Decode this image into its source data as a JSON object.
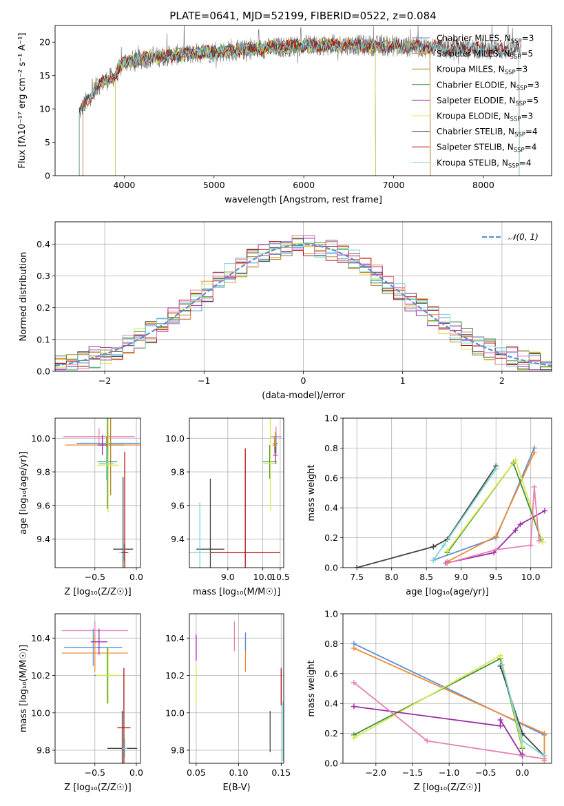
{
  "colors": {
    "chabrier_miles": "#5b8fd6",
    "salpeter_miles": "#f28b30",
    "kroupa_miles": "#b5872a",
    "chabrier_elodie": "#3a8f3a",
    "salpeter_elodie": "#9b2aa6",
    "kroupa_elodie": "#d9e84a",
    "chabrier_stelib": "#444444",
    "salpeter_stelib": "#b01010",
    "kroupa_stelib": "#7ad6d6",
    "spectrum_data": "#777777",
    "pink": "#e67fb3",
    "normal": "#5b8fd6"
  },
  "chart_data": [
    {
      "id": "spectrum",
      "type": "line",
      "title": "PLATE=0641, MJD=52199, FIBERID=0522, z=0.084",
      "xlabel": "wavelength [Angstrom, rest frame]",
      "ylabel": "Flux [fλ10⁻¹⁷ erg cm⁻² s⁻¹ A⁻¹]",
      "xlim": [
        3230,
        8760
      ],
      "ylim": [
        0,
        22.5
      ],
      "xticks": [
        4000,
        5000,
        6000,
        7000,
        8000
      ],
      "yticks": [
        0,
        5,
        10,
        15,
        20
      ],
      "grid": false,
      "legend_position": "top-right",
      "continuum": [
        [
          3500,
          9.5
        ],
        [
          3700,
          13.5
        ],
        [
          3900,
          15
        ],
        [
          4000,
          17
        ],
        [
          4200,
          17.5
        ],
        [
          4500,
          18
        ],
        [
          5000,
          18.5
        ],
        [
          5500,
          19
        ],
        [
          6000,
          19.5
        ],
        [
          6500,
          19.6
        ],
        [
          7000,
          19.4
        ],
        [
          7500,
          19.2
        ],
        [
          8000,
          19
        ],
        [
          8400,
          18.8
        ]
      ],
      "legend": [
        {
          "label": "Chabrier MILES, N",
          "sub": "SSP",
          "suffix": "=3",
          "color_key": "chabrier_miles"
        },
        {
          "label": "Salpeter MILES, N",
          "sub": "SSP",
          "suffix": "=5",
          "color_key": "salpeter_miles"
        },
        {
          "label": "Kroupa MILES, N",
          "sub": "SSP",
          "suffix": "=3",
          "color_key": "kroupa_miles"
        },
        {
          "label": "Chabrier ELODIE, N",
          "sub": "SSP",
          "suffix": "=3",
          "color_key": "chabrier_elodie"
        },
        {
          "label": "Salpeter ELODIE, N",
          "sub": "SSP",
          "suffix": "=5",
          "color_key": "salpeter_elodie"
        },
        {
          "label": "Kroupa ELODIE, N",
          "sub": "SSP",
          "suffix": "=3",
          "color_key": "kroupa_elodie"
        },
        {
          "label": "Chabrier STELIB, N",
          "sub": "SSP",
          "suffix": "=4",
          "color_key": "chabrier_stelib"
        },
        {
          "label": "Salpeter STELIB, N",
          "sub": "SSP",
          "suffix": "=4",
          "color_key": "salpeter_stelib"
        },
        {
          "label": "Kroupa STELIB, N",
          "sub": "SSP",
          "suffix": "=4",
          "color_key": "kroupa_stelib"
        }
      ]
    },
    {
      "id": "residuals",
      "type": "line",
      "xlabel": "(data-model)/error",
      "ylabel": "Normed distribution",
      "xlim": [
        -2.5,
        2.5
      ],
      "ylim": [
        0,
        0.47
      ],
      "xticks": [
        -2,
        -1,
        0,
        1,
        2
      ],
      "yticks": [
        0.0,
        0.1,
        0.2,
        0.3,
        0.4
      ],
      "grid": true,
      "legend_position": "top-right",
      "legend": [
        {
          "label": "𝒩(0, 1)",
          "color_key": "normal"
        }
      ],
      "hist_bins": 44,
      "series_colors": [
        "chabrier_miles",
        "salpeter_miles",
        "kroupa_miles",
        "chabrier_elodie",
        "salpeter_elodie",
        "kroupa_elodie",
        "chabrier_stelib",
        "salpeter_stelib",
        "kroupa_stelib",
        "pink"
      ]
    },
    {
      "id": "age_vs_Z",
      "type": "scatter",
      "xlabel": "Z [log₁₀(Z/Z☉)]",
      "ylabel": "age  [log₁₀(age/yr)]",
      "xlim": [
        -0.98,
        0.05
      ],
      "ylim": [
        9.23,
        10.12
      ],
      "xticks": [
        -0.5,
        0.0
      ],
      "yticks": [
        9.4,
        9.6,
        9.8,
        10.0
      ],
      "grid": true,
      "points": [
        {
          "x": -0.45,
          "y": 10.01,
          "xerr": 0.43,
          "yerr": 0.05,
          "color_key": "pink"
        },
        {
          "x": -0.34,
          "y": 9.97,
          "xerr": 0.38,
          "yerr": 0.06,
          "color_key": "chabrier_miles"
        },
        {
          "x": -0.36,
          "y": 9.96,
          "xerr": 0.5,
          "yerr": 0.05,
          "color_key": "salpeter_miles"
        },
        {
          "x": -0.31,
          "y": 9.96,
          "xerr": 0.16,
          "yerr": 0.3,
          "color_key": "kroupa_miles"
        },
        {
          "x": -0.35,
          "y": 9.86,
          "xerr": 0.12,
          "yerr": 0.28,
          "color_key": "chabrier_elodie"
        },
        {
          "x": -0.36,
          "y": 9.85,
          "xerr": 0.09,
          "yerr": 0.1,
          "color_key": "kroupa_stelib"
        },
        {
          "x": -0.34,
          "y": 9.84,
          "xerr": 0.13,
          "yerr": 0.28,
          "color_key": "kroupa_elodie"
        },
        {
          "x": -0.41,
          "y": 9.96,
          "xerr": 0.05,
          "yerr": 0.06,
          "color_key": "salpeter_elodie"
        },
        {
          "x": -0.16,
          "y": 9.34,
          "xerr": 0.12,
          "yerr": 0.43,
          "color_key": "chabrier_stelib"
        },
        {
          "x": -0.15,
          "y": 9.32,
          "xerr": 0.06,
          "yerr": 0.05,
          "color_key": "kroupa_stelib"
        },
        {
          "x": -0.14,
          "y": 9.32,
          "xerr": 0.04,
          "yerr": 0.6,
          "color_key": "salpeter_stelib"
        }
      ]
    },
    {
      "id": "age_vs_mass",
      "type": "scatter",
      "xlabel": "mass [log₁₀(M/M☉)]",
      "ylabel": "",
      "xlim": [
        7.9,
        10.6
      ],
      "ylim": [
        9.23,
        10.12
      ],
      "xticks": [
        10.0,
        10.5
      ],
      "xticklabels": [
        "10.0",
        "10.5"
      ],
      "extra_xticks": [
        {
          "v": 9.0,
          "label": ""
        }
      ],
      "yticks": [
        9.4,
        9.6,
        9.8,
        10.0
      ],
      "grid": true,
      "points": [
        {
          "x": 10.38,
          "y": 10.01,
          "xerr": 0.15,
          "yerr": 0.06,
          "color_key": "pink"
        },
        {
          "x": 10.38,
          "y": 9.97,
          "xerr": 0.06,
          "yerr": 0.06,
          "color_key": "chabrier_miles"
        },
        {
          "x": 10.36,
          "y": 9.97,
          "xerr": 0.07,
          "yerr": 0.07,
          "color_key": "salpeter_miles"
        },
        {
          "x": 10.34,
          "y": 9.96,
          "xerr": 0.06,
          "yerr": 0.05,
          "color_key": "kroupa_miles"
        },
        {
          "x": 10.2,
          "y": 9.86,
          "xerr": 0.2,
          "yerr": 0.1,
          "color_key": "chabrier_elodie"
        },
        {
          "x": 10.22,
          "y": 9.85,
          "xerr": 0.2,
          "yerr": 0.28,
          "color_key": "kroupa_elodie"
        },
        {
          "x": 10.36,
          "y": 9.9,
          "xerr": 0.07,
          "yerr": 0.05,
          "color_key": "salpeter_elodie"
        },
        {
          "x": 8.5,
          "y": 9.34,
          "xerr": 0.4,
          "yerr": 0.42,
          "color_key": "chabrier_stelib"
        },
        {
          "x": 8.2,
          "y": 9.32,
          "xerr": 0.4,
          "yerr": 0.3,
          "color_key": "kroupa_stelib"
        },
        {
          "x": 9.5,
          "y": 9.32,
          "xerr": 1.0,
          "yerr": 0.62,
          "color_key": "salpeter_stelib"
        }
      ]
    },
    {
      "id": "weight_vs_age",
      "type": "line",
      "xlabel": "age  [log₁₀(age/yr)]",
      "ylabel": "mass weight",
      "xlim": [
        7.3,
        10.3
      ],
      "ylim": [
        0.0,
        1.0
      ],
      "xticks": [
        7.5,
        8.0,
        8.5,
        9.0,
        9.5,
        10.0
      ],
      "yticks": [
        0.0,
        0.2,
        0.4,
        0.6,
        0.8,
        1.0
      ],
      "grid": true,
      "series": [
        {
          "color_key": "chabrier_miles",
          "x": [
            8.6,
            9.5,
            10.05
          ],
          "y": [
            0.05,
            0.2,
            0.8
          ]
        },
        {
          "color_key": "salpeter_miles",
          "x": [
            8.8,
            9.5,
            10.05
          ],
          "y": [
            0.04,
            0.21,
            0.77
          ]
        },
        {
          "color_key": "chabrier_stelib",
          "x": [
            7.5,
            8.6,
            8.8,
            9.5
          ],
          "y": [
            0.0,
            0.14,
            0.19,
            0.68
          ]
        },
        {
          "color_key": "kroupa_stelib",
          "x": [
            8.6,
            8.75,
            9.5
          ],
          "y": [
            0.05,
            0.15,
            0.66
          ]
        },
        {
          "color_key": "chabrier_elodie",
          "x": [
            8.8,
            9.75,
            10.15
          ],
          "y": [
            0.1,
            0.7,
            0.19
          ]
        },
        {
          "color_key": "kroupa_elodie",
          "x": [
            8.8,
            9.78,
            10.17
          ],
          "y": [
            0.11,
            0.72,
            0.17
          ]
        },
        {
          "color_key": "salpeter_elodie",
          "x": [
            8.78,
            9.47,
            9.78,
            9.85,
            10.2
          ],
          "y": [
            0.03,
            0.1,
            0.25,
            0.29,
            0.38
          ]
        },
        {
          "color_key": "pink",
          "x": [
            8.8,
            9.5,
            10.0,
            10.05,
            10.12
          ],
          "y": [
            0.03,
            0.12,
            0.15,
            0.54,
            0.18
          ]
        }
      ]
    },
    {
      "id": "mass_vs_Z",
      "type": "scatter",
      "xlabel": "Z [log₁₀(Z/Z☉)]",
      "ylabel": "mass [log₁₀(M/M☉)]",
      "xlim": [
        -0.98,
        0.05
      ],
      "ylim": [
        9.73,
        10.53
      ],
      "xticks": [
        -0.5,
        0.0
      ],
      "yticks": [
        9.8,
        10.0,
        10.2,
        10.4
      ],
      "grid": true,
      "points": [
        {
          "x": -0.5,
          "y": 10.44,
          "xerr": 0.4,
          "yerr": 0.05,
          "color_key": "pink"
        },
        {
          "x": -0.52,
          "y": 10.35,
          "xerr": 0.35,
          "yerr": 0.1,
          "color_key": "chabrier_miles"
        },
        {
          "x": -0.5,
          "y": 10.32,
          "xerr": 0.4,
          "yerr": 0.1,
          "color_key": "salpeter_miles"
        },
        {
          "x": -0.45,
          "y": 10.38,
          "xerr": 0.1,
          "yerr": 0.07,
          "color_key": "salpeter_elodie"
        },
        {
          "x": -0.35,
          "y": 10.2,
          "xerr": 0.15,
          "yerr": 0.15,
          "color_key": "chabrier_elodie"
        },
        {
          "x": -0.34,
          "y": 10.2,
          "xerr": 0.15,
          "yerr": 0.15,
          "color_key": "kroupa_elodie"
        },
        {
          "x": -0.15,
          "y": 9.92,
          "xerr": 0.08,
          "yerr": 0.32,
          "color_key": "salpeter_stelib"
        },
        {
          "x": -0.17,
          "y": 9.81,
          "xerr": 0.18,
          "yerr": 0.2,
          "color_key": "chabrier_stelib"
        },
        {
          "x": -0.14,
          "y": 9.81,
          "xerr": 0.03,
          "yerr": 0.05,
          "color_key": "kroupa_stelib"
        }
      ]
    },
    {
      "id": "mass_vs_ebv",
      "type": "scatter",
      "xlabel": "E(B-V)",
      "ylabel": "",
      "xlim": [
        0.042,
        0.153
      ],
      "ylim": [
        9.73,
        10.53
      ],
      "xticks": [
        0.05,
        0.1,
        0.15
      ],
      "xticklabels": [
        "0.05",
        "0.10",
        "0.15"
      ],
      "yticks": [
        9.8,
        10.0,
        10.2,
        10.4
      ],
      "grid": true,
      "points": [
        {
          "x": 0.05,
          "y": 10.35,
          "yerr": 0.07,
          "color_key": "salpeter_elodie"
        },
        {
          "x": 0.05,
          "y": 10.15,
          "yerr": 0.11,
          "color_key": "kroupa_elodie"
        },
        {
          "x": 0.095,
          "y": 10.41,
          "yerr": 0.08,
          "color_key": "pink"
        },
        {
          "x": 0.108,
          "y": 10.32,
          "yerr": 0.1,
          "color_key": "salpeter_miles"
        },
        {
          "x": 0.108,
          "y": 10.38,
          "yerr": 0.05,
          "color_key": "chabrier_miles"
        },
        {
          "x": 0.137,
          "y": 9.9,
          "yerr": 0.11,
          "color_key": "chabrier_stelib"
        },
        {
          "x": 0.15,
          "y": 10.14,
          "yerr": 0.1,
          "color_key": "salpeter_stelib"
        },
        {
          "x": 0.152,
          "y": 9.9,
          "yerr": 0.16,
          "color_key": "kroupa_stelib"
        }
      ]
    },
    {
      "id": "weight_vs_Z",
      "type": "line",
      "xlabel": "Z [log₁₀(Z/Z☉)]",
      "ylabel": "mass weight",
      "xlim": [
        -2.45,
        0.4
      ],
      "ylim": [
        0.0,
        1.0
      ],
      "xticks": [
        -2.0,
        -1.5,
        -1.0,
        -0.5,
        0.0
      ],
      "yticks": [
        0.0,
        0.2,
        0.4,
        0.6,
        0.8,
        1.0
      ],
      "grid": true,
      "series": [
        {
          "color_key": "chabrier_miles",
          "x": [
            -2.3,
            0.3,
            0.3
          ],
          "y": [
            0.8,
            0.19,
            0.05
          ]
        },
        {
          "color_key": "salpeter_miles",
          "x": [
            -2.3,
            0.3,
            0.3
          ],
          "y": [
            0.77,
            0.2,
            0.02
          ]
        },
        {
          "color_key": "chabrier_elodie",
          "x": [
            -2.3,
            -0.3,
            0.0
          ],
          "y": [
            0.19,
            0.7,
            0.1
          ]
        },
        {
          "color_key": "kroupa_elodie",
          "x": [
            -2.3,
            -0.3,
            0.0
          ],
          "y": [
            0.17,
            0.72,
            0.11
          ]
        },
        {
          "color_key": "chabrier_stelib",
          "x": [
            -0.3,
            0.0,
            0.3
          ],
          "y": [
            0.65,
            0.2,
            0.05
          ]
        },
        {
          "color_key": "kroupa_stelib",
          "x": [
            -0.28,
            0.0,
            0.3
          ],
          "y": [
            0.66,
            0.15,
            0.05
          ]
        },
        {
          "color_key": "salpeter_elodie",
          "x": [
            -2.3,
            -0.3,
            -0.3,
            0.0,
            0.0
          ],
          "y": [
            0.38,
            0.25,
            0.29,
            0.05,
            0.06
          ]
        },
        {
          "color_key": "pink",
          "x": [
            -2.3,
            -1.3,
            0.3
          ],
          "y": [
            0.54,
            0.15,
            0.03
          ]
        }
      ]
    }
  ]
}
